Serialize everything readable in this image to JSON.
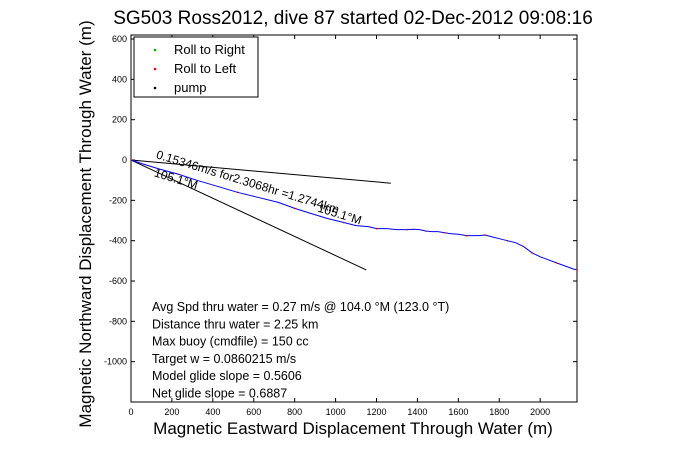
{
  "chart_data": {
    "type": "line",
    "title": "SG503 Ross2012, dive 87 started 02-Dec-2012 09:08:16",
    "xlabel": "Magnetic Eastward Displacement Through Water (m)",
    "ylabel": "Magnetic Northward Displacement Through Water (m)",
    "xlim": [
      0,
      2180
    ],
    "ylim": [
      -1200,
      620
    ],
    "xticks": [
      0,
      200,
      400,
      600,
      800,
      1000,
      1200,
      1400,
      1600,
      1800,
      2000
    ],
    "yticks": [
      600,
      400,
      200,
      0,
      -200,
      -400,
      -600,
      -800,
      -1000
    ],
    "grid": false,
    "legend": {
      "placement": "top-left",
      "entries": [
        {
          "label": "Roll to Right",
          "color": "#00aa00"
        },
        {
          "label": "Roll to Left",
          "color": "#ff0000"
        },
        {
          "label": "pump",
          "color": "#000000"
        }
      ]
    },
    "series": [
      {
        "color": "#0000ff",
        "x": [
          0,
          60,
          140,
          230,
          320,
          420,
          520,
          620,
          720,
          800,
          880,
          960,
          1040,
          1100,
          1160,
          1200,
          1250,
          1300,
          1350,
          1380,
          1410,
          1440,
          1470,
          1500,
          1530,
          1560,
          1600,
          1640,
          1680,
          1700,
          1730,
          1760,
          1800,
          1840,
          1880,
          1920,
          1960,
          2000,
          2040,
          2080,
          2120,
          2160,
          2180
        ],
        "y": [
          0,
          -20,
          -45,
          -70,
          -100,
          -130,
          -160,
          -185,
          -210,
          -240,
          -265,
          -290,
          -310,
          -325,
          -330,
          -340,
          -340,
          -345,
          -345,
          -343,
          -345,
          -352,
          -355,
          -355,
          -360,
          -365,
          -368,
          -375,
          -375,
          -375,
          -372,
          -380,
          -390,
          -400,
          -410,
          -430,
          -460,
          -480,
          -495,
          -510,
          -525,
          -540,
          -545
        ]
      }
    ],
    "reference_lines": [
      {
        "x": [
          0,
          1270
        ],
        "y": [
          0,
          -115
        ]
      },
      {
        "x": [
          0,
          1150
        ],
        "y": [
          0,
          -545
        ]
      }
    ],
    "annotations": [
      {
        "text": "0.15346m/s for2.3068hr =1.2744km",
        "x": 120,
        "y": 10,
        "rotation_deg": 17
      },
      {
        "text": "105.1°M",
        "x": 110,
        "y": -80,
        "rotation_deg": 17
      },
      {
        "text": "105.1°M",
        "x": 910,
        "y": -255,
        "rotation_deg": 17
      }
    ],
    "stats": [
      "Avg Spd thru water = 0.27 m/s @ 104.0    °M (123.0 °T)",
      "Distance thru water = 2.25 km",
      "Max buoy (cmdfile) = 150 cc",
      "Target w = 0.0860215 m/s",
      "Model glide slope = 0.5606",
      "Net glide slope = 0.6887"
    ]
  }
}
